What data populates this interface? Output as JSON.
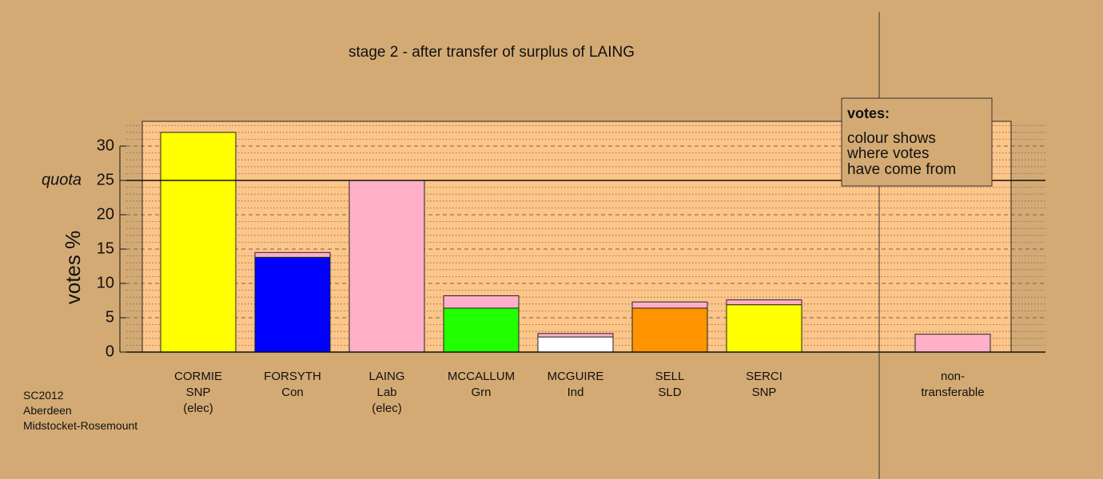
{
  "chart_data": {
    "type": "bar",
    "title": "stage 2 - after transfer of surplus of LAING",
    "ylabel": "votes %",
    "ylim": [
      0,
      33.6
    ],
    "yticks": [
      0,
      5,
      10,
      15,
      20,
      25,
      30
    ],
    "quota": {
      "value": 25,
      "label": "quota"
    },
    "grid": true,
    "categories": [
      {
        "name": "CORMIE",
        "party": "SNP",
        "note": "(elec)"
      },
      {
        "name": "FORSYTH",
        "party": "Con",
        "note": ""
      },
      {
        "name": "LAING",
        "party": "Lab",
        "note": "(elec)"
      },
      {
        "name": "MCCALLUM",
        "party": "Grn",
        "note": ""
      },
      {
        "name": "MCGUIRE",
        "party": "Ind",
        "note": ""
      },
      {
        "name": "SELL",
        "party": "SLD",
        "note": ""
      },
      {
        "name": "SERCI",
        "party": "SNP",
        "note": ""
      },
      {
        "name": "",
        "party": "",
        "note": ""
      },
      {
        "name": "non-",
        "party": "transferable",
        "note": ""
      }
    ],
    "segments": [
      [
        {
          "value": 32.0,
          "color": "#ffff00"
        }
      ],
      [
        {
          "value": 13.8,
          "color": "#0000ff"
        },
        {
          "value": 0.7,
          "color": "#ffb0c8"
        }
      ],
      [
        {
          "value": 25.0,
          "color": "#ffb0c8"
        }
      ],
      [
        {
          "value": 6.4,
          "color": "#22ff00"
        },
        {
          "value": 1.8,
          "color": "#ffb0c8"
        }
      ],
      [
        {
          "value": 2.2,
          "color": "#ffffff"
        },
        {
          "value": 0.5,
          "color": "#ffb0c8"
        }
      ],
      [
        {
          "value": 6.4,
          "color": "#ff9400"
        },
        {
          "value": 0.9,
          "color": "#ffb0c8"
        }
      ],
      [
        {
          "value": 6.9,
          "color": "#ffff00"
        },
        {
          "value": 0.7,
          "color": "#ffb0c8"
        }
      ],
      [],
      [
        {
          "value": 2.6,
          "color": "#ffb0c8"
        }
      ]
    ],
    "legend": {
      "title": "votes:",
      "lines": [
        "colour shows",
        "where votes",
        "have come from"
      ],
      "position": "top-right"
    },
    "footnote": [
      "SC2012",
      "Aberdeen",
      "Midstocket-Rosemount"
    ],
    "colors": {
      "background": "#d4aa74",
      "plot_area": "#fdc588",
      "axis": "#111111"
    }
  }
}
